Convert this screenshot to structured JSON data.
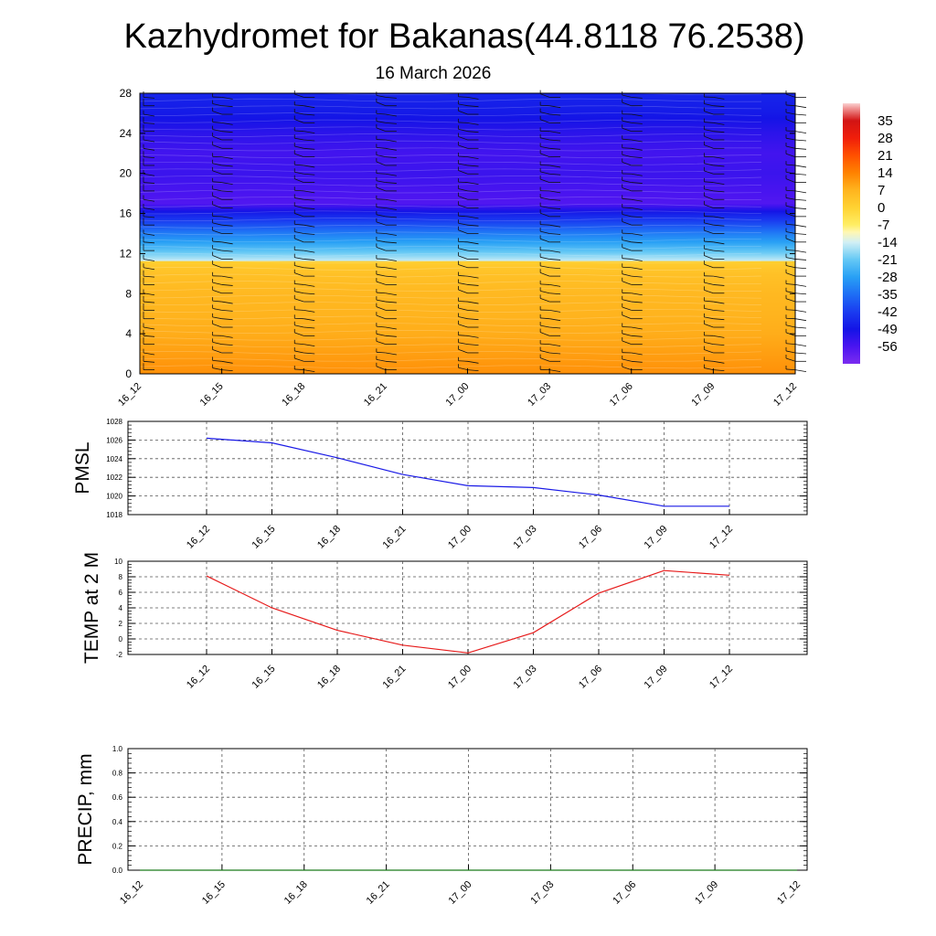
{
  "title": "Kazhydromet for Bakanas(44.8118 76.2538)",
  "subtitle": "16 March 2026",
  "colors": {
    "pmsl_line": "#1a1ae6",
    "temp_line": "#e61a1a",
    "precip_line": "#1a7a1a",
    "grid": "#555555",
    "barb": "#111111"
  },
  "chart_data": [
    {
      "id": "upper_air",
      "type": "heatmap",
      "title": "",
      "xlabel": "",
      "ylabel": "",
      "x_categories": [
        "16_12",
        "16_15",
        "16_18",
        "16_21",
        "17_00",
        "17_03",
        "17_06",
        "17_09",
        "17_12"
      ],
      "y_ticks": [
        0,
        4,
        8,
        12,
        16,
        20,
        24,
        28
      ],
      "ylim": [
        0,
        28
      ],
      "temperature_profile": {
        "levels": [
          0,
          2,
          4,
          6,
          8,
          10,
          11.2,
          11.3,
          12,
          13,
          14,
          15,
          16,
          16.5,
          17,
          18,
          20,
          22,
          24,
          26,
          28
        ],
        "values": [
          12,
          10,
          8,
          7,
          6,
          4,
          1,
          -15,
          -20,
          -27,
          -33,
          -40,
          -47,
          -52,
          -57,
          -56,
          -54,
          -55,
          -52,
          -48,
          -46
        ]
      },
      "wind_barbs": "black wind barbs at each time column and level",
      "colorbar": {
        "labels": [
          "35",
          "28",
          "21",
          "14",
          "7",
          "0",
          "-7",
          "-14",
          "-21",
          "-28",
          "-35",
          "-42",
          "-49",
          "-56"
        ],
        "range": [
          -63,
          42
        ],
        "stops": [
          {
            "value": -63,
            "color": "#7b2cf0"
          },
          {
            "value": -56,
            "color": "#4a14f0"
          },
          {
            "value": -49,
            "color": "#1414e6"
          },
          {
            "value": -42,
            "color": "#1a3cf0"
          },
          {
            "value": -35,
            "color": "#1e6ef5"
          },
          {
            "value": -28,
            "color": "#28a0f5"
          },
          {
            "value": -21,
            "color": "#64c8f5"
          },
          {
            "value": -14,
            "color": "#d2f0f5"
          },
          {
            "value": -10,
            "color": "#fff7b4"
          },
          {
            "value": -7,
            "color": "#ffee64"
          },
          {
            "value": 0,
            "color": "#ffd232"
          },
          {
            "value": 7,
            "color": "#ffb41e"
          },
          {
            "value": 14,
            "color": "#ff8200"
          },
          {
            "value": 21,
            "color": "#ff5000"
          },
          {
            "value": 28,
            "color": "#f01e0a"
          },
          {
            "value": 35,
            "color": "#d21414"
          },
          {
            "value": 40,
            "color": "#f09696"
          },
          {
            "value": 42,
            "color": "#fad2d2"
          }
        ]
      }
    },
    {
      "id": "pmsl",
      "type": "line",
      "ylabel": "PMSL",
      "x": [
        "16_12",
        "16_15",
        "16_18",
        "16_21",
        "17_00",
        "17_03",
        "17_06",
        "17_09",
        "17_12"
      ],
      "values": [
        1026.2,
        1025.7,
        1024.1,
        1022.3,
        1021.1,
        1020.9,
        1020.1,
        1018.9,
        1018.9
      ],
      "y_ticks": [
        1018,
        1020,
        1022,
        1024,
        1026,
        1028
      ],
      "ylim": [
        1018,
        1028
      ]
    },
    {
      "id": "temp2m",
      "type": "line",
      "ylabel": "TEMP at 2 M",
      "x": [
        "16_12",
        "16_15",
        "16_18",
        "16_21",
        "17_00",
        "17_03",
        "17_06",
        "17_09",
        "17_12"
      ],
      "values": [
        8.1,
        4.0,
        1.1,
        -0.8,
        -1.8,
        0.8,
        5.9,
        8.8,
        8.2
      ],
      "y_ticks": [
        -2,
        0,
        2,
        4,
        6,
        8,
        10
      ],
      "ylim": [
        -2,
        10
      ]
    },
    {
      "id": "precip",
      "type": "line",
      "ylabel": "PRECIP, mm",
      "x": [
        "16_12",
        "16_15",
        "16_18",
        "16_21",
        "17_00",
        "17_03",
        "17_06",
        "17_09",
        "17_12"
      ],
      "values": [
        0,
        0,
        0,
        0,
        0,
        0,
        0,
        0,
        0
      ],
      "y_ticks": [
        0.0,
        0.2,
        0.4,
        0.6,
        0.8,
        1.0
      ],
      "y_tick_labels": [
        "0.0",
        "0.2",
        "0.4",
        "0.6",
        "0.8",
        "1.0"
      ],
      "ylim": [
        0,
        1
      ]
    }
  ]
}
